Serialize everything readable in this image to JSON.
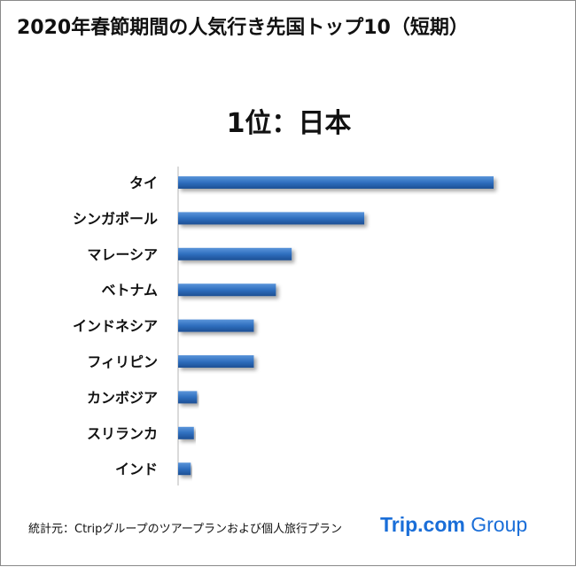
{
  "title": "2020年春節期間の人気行き先国トップ10（短期）",
  "chart_data": {
    "type": "bar",
    "orientation": "horizontal",
    "title": "2020年春節期間の人気行き先国トップ10（短期）",
    "subtitle": "1位：日本",
    "categories": [
      "タイ",
      "シンガポール",
      "マレーシア",
      "ベトナム",
      "インドネシア",
      "フィリピン",
      "カンボジア",
      "スリランカ",
      "インド"
    ],
    "values": [
      100,
      59,
      36,
      31,
      24,
      24,
      6,
      5,
      4
    ],
    "xlim": [
      0,
      100
    ],
    "grid": false,
    "legend": "none",
    "bar_color": "#2f6fbf"
  },
  "source": "統計元：Ctripグループのツアープランおよび個人旅行プラン",
  "logo": {
    "trip": "Trip.com",
    "group": " Group"
  }
}
